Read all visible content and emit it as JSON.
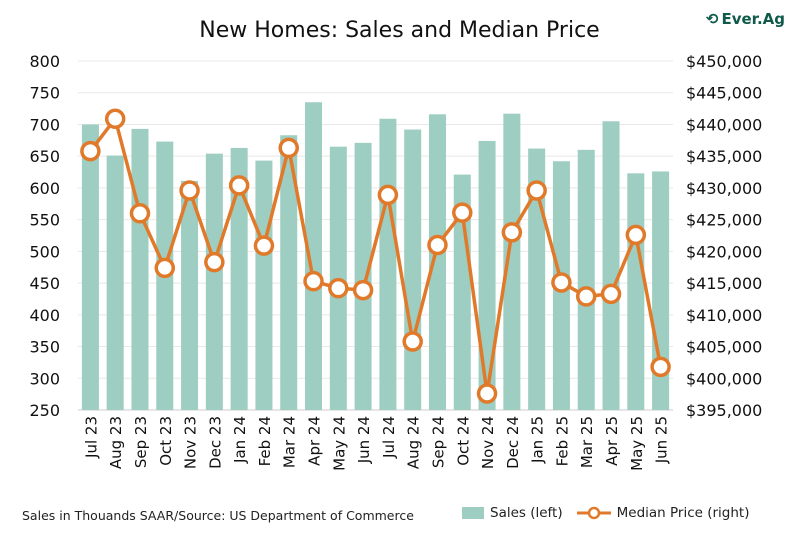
{
  "chart_data": {
    "type": "bar+line",
    "title": "New Homes: Sales and Median Price",
    "categories": [
      "Jul 23",
      "Aug 23",
      "Sep 23",
      "Oct 23",
      "Nov 23",
      "Dec 23",
      "Jan 24",
      "Feb 24",
      "Mar 24",
      "Apr 24",
      "May 24",
      "Jun 24",
      "Jul 24",
      "Aug 24",
      "Sep 24",
      "Oct 24",
      "Nov 24",
      "Dec 24",
      "Jan 25",
      "Feb 25",
      "Mar 25",
      "Apr 25",
      "May 25",
      "Jun 25"
    ],
    "series": [
      {
        "name": "Sales (left)",
        "type": "bar",
        "axis": "left",
        "color": "#9ecdc2",
        "values": [
          700,
          651,
          693,
          673,
          611,
          654,
          663,
          643,
          683,
          735,
          665,
          671,
          709,
          692,
          716,
          621,
          674,
          717,
          662,
          642,
          660,
          705,
          623,
          626
        ]
      },
      {
        "name": "Median Price (right)",
        "type": "line",
        "axis": "right",
        "color": "#e07a2a",
        "values": [
          435800,
          440900,
          426000,
          417400,
          429600,
          418300,
          430400,
          420900,
          436300,
          415300,
          414200,
          413900,
          428900,
          405800,
          421000,
          426100,
          397600,
          423000,
          429600,
          415100,
          412900,
          413300,
          422600,
          401800
        ]
      }
    ],
    "left_axis": {
      "ylim": [
        250,
        800
      ],
      "ticks": [
        "800",
        "750",
        "700",
        "650",
        "600",
        "550",
        "500",
        "450",
        "400",
        "350",
        "300",
        "250"
      ]
    },
    "right_axis": {
      "ylim": [
        395000,
        450000
      ],
      "ticks": [
        "$450,000",
        "$445,000",
        "$440,000",
        "$435,000",
        "$430,000",
        "$425,000",
        "$420,000",
        "$415,000",
        "$410,000",
        "$405,000",
        "$400,000",
        "$395,000"
      ]
    },
    "grid": true,
    "legend": "bottom-right"
  },
  "footer": "Sales in Thouands SAAR/Source: US Department of Commerce",
  "logo": "Ever.Ag"
}
